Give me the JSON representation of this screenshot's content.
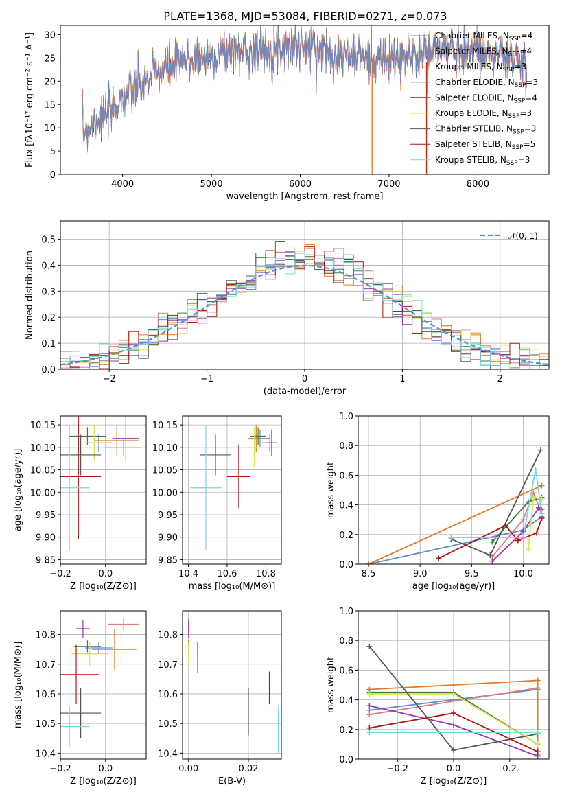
{
  "figure_title": "PLATE=1368, MJD=53084, FIBERID=0271, z=0.073",
  "colors": {
    "chabrier_miles": "#5b8bd6",
    "salpeter_miles": "#e07b7b",
    "kroupa_miles": "#e07b20",
    "chabrier_elodie": "#3a7a3a",
    "salpeter_elodie": "#9b35b0",
    "kroupa_elodie": "#d6e54a",
    "chabrier_stelib": "#555555",
    "salpeter_stelib": "#b01515",
    "kroupa_stelib": "#7ad9dc",
    "normal_curve": "#5b8bd6"
  },
  "chart_data": [
    {
      "id": "spectrum",
      "type": "line",
      "title": "PLATE=1368, MJD=53084, FIBERID=0271, z=0.073",
      "xlabel": "wavelength [Angstrom, rest frame]",
      "ylabel": "Flux [fλ10⁻¹⁷ erg cm⁻² s⁻¹ A⁻¹]",
      "xlim": [
        3300,
        8800
      ],
      "ylim": [
        0,
        32
      ],
      "xticks": [
        "4000",
        "5000",
        "6000",
        "7000",
        "8000"
      ],
      "yticks": [
        "0",
        "5",
        "10",
        "15",
        "20",
        "25",
        "30"
      ],
      "legend_placement": "right",
      "series": [
        {
          "name": "Chabrier MILES, N",
          "sub": "SSP",
          "suffix": "=4",
          "color": "#5b8bd6"
        },
        {
          "name": "Salpeter MILES, N",
          "sub": "SSP",
          "suffix": "=4",
          "color": "#e07b7b"
        },
        {
          "name": "Kroupa MILES, N",
          "sub": "SSP",
          "suffix": "=3",
          "color": "#e07b20"
        },
        {
          "name": "Chabrier ELODIE, N",
          "sub": "SSP",
          "suffix": "=3",
          "color": "#3a7a3a"
        },
        {
          "name": "Salpeter ELODIE, N",
          "sub": "SSP",
          "suffix": "=4",
          "color": "#9b35b0"
        },
        {
          "name": "Kroupa ELODIE, N",
          "sub": "SSP",
          "suffix": "=3",
          "color": "#d6e54a"
        },
        {
          "name": "Chabrier STELIB, N",
          "sub": "SSP",
          "suffix": "=3",
          "color": "#555555"
        },
        {
          "name": "Salpeter STELIB, N",
          "sub": "SSP",
          "suffix": "=5",
          "color": "#b01515"
        },
        {
          "name": "Kroupa STELIB, N",
          "sub": "SSP",
          "suffix": "=3",
          "color": "#7ad9dc"
        }
      ],
      "continuum": {
        "x": [
          3550,
          3700,
          3850,
          4000,
          4200,
          4400,
          4600,
          4800,
          5000,
          5200,
          5400,
          5600,
          5800,
          6000,
          6200,
          6400,
          6600,
          6800,
          7000,
          7200,
          7400,
          7600,
          7800,
          8000,
          8200,
          8400,
          8550
        ],
        "y": [
          9,
          12,
          13,
          16.5,
          19,
          22,
          23.5,
          24.5,
          25.5,
          26.5,
          26.5,
          27,
          27.5,
          27.5,
          27,
          26,
          25.5,
          25,
          24.5,
          25,
          26,
          27,
          27,
          26.5,
          26,
          25,
          23
        ]
      }
    },
    {
      "id": "residual-hist",
      "type": "histogram",
      "xlabel": "(data-model)/error",
      "ylabel": "Normed distribution",
      "xlim": [
        -2.5,
        2.5
      ],
      "ylim": [
        0,
        0.57
      ],
      "xticks": [
        "−2",
        "−1",
        "0",
        "1",
        "2"
      ],
      "yticks": [
        "0.0",
        "0.1",
        "0.2",
        "0.3",
        "0.4",
        "0.5"
      ],
      "legend": {
        "label": "𝒩(0, 1)",
        "placement": "top-right"
      },
      "bin_width": 0.1
    },
    {
      "id": "z-age",
      "type": "errorbar",
      "xlabel": "Z [log₁₀(Z/Z⊙)]",
      "ylabel": "age  [log₁₀(age/yr)]",
      "xlim": [
        -0.2,
        0.18
      ],
      "ylim": [
        9.84,
        10.17
      ],
      "xticks": [
        "−0.2",
        "0.0"
      ],
      "yticks": [
        "9.85",
        "9.90",
        "9.95",
        "10.00",
        "10.05",
        "10.10",
        "10.15"
      ],
      "points": [
        {
          "x": -0.03,
          "y": 10.11,
          "xerr": 0.06,
          "yerr": 0.02,
          "color": "#5b8bd6"
        },
        {
          "x": 0.08,
          "y": 10.1,
          "xerr": 0.08,
          "yerr": 0.02,
          "color": "#e07b7b"
        },
        {
          "x": 0.05,
          "y": 10.115,
          "xerr": 0.1,
          "yerr": 0.035,
          "color": "#e07b20"
        },
        {
          "x": -0.08,
          "y": 10.125,
          "xerr": 0.08,
          "yerr": 0.02,
          "color": "#3a7a3a"
        },
        {
          "x": 0.09,
          "y": 10.12,
          "xerr": 0.06,
          "yerr": 0.05,
          "color": "#9b35b0"
        },
        {
          "x": -0.05,
          "y": 10.11,
          "xerr": 0.08,
          "yerr": 0.04,
          "color": "#d6e54a"
        },
        {
          "x": -0.11,
          "y": 10.083,
          "xerr": 0.09,
          "yerr": 0.045,
          "color": "#555555"
        },
        {
          "x": -0.12,
          "y": 10.035,
          "xerr": 0.1,
          "yerr": 0.14,
          "color": "#b01515"
        },
        {
          "x": -0.16,
          "y": 10.01,
          "xerr": 0.09,
          "yerr": 0.14,
          "color": "#7ad9dc"
        }
      ]
    },
    {
      "id": "mass-age",
      "type": "errorbar",
      "xlabel": "mass [log₁₀(M/M⊙)]",
      "ylabel": "",
      "xlim": [
        10.37,
        10.88
      ],
      "ylim": [
        9.84,
        10.17
      ],
      "xticks": [
        "10.4",
        "10.6",
        "10.8"
      ],
      "yticks": [
        "9.85",
        "9.90",
        "9.95",
        "10.00",
        "10.05",
        "10.10",
        "10.15"
      ],
      "points": [
        {
          "x": 10.77,
          "y": 10.12,
          "xerr": 0.05,
          "yerr": 0.02,
          "color": "#5b8bd6"
        },
        {
          "x": 10.82,
          "y": 10.11,
          "xerr": 0.04,
          "yerr": 0.02,
          "color": "#e07b7b"
        },
        {
          "x": 10.75,
          "y": 10.12,
          "xerr": 0.04,
          "yerr": 0.03,
          "color": "#e07b20"
        },
        {
          "x": 10.76,
          "y": 10.125,
          "xerr": 0.04,
          "yerr": 0.02,
          "color": "#3a7a3a"
        },
        {
          "x": 10.83,
          "y": 10.11,
          "xerr": 0.03,
          "yerr": 0.03,
          "color": "#9b35b0"
        },
        {
          "x": 10.74,
          "y": 10.1,
          "xerr": 0.03,
          "yerr": 0.045,
          "color": "#d6e54a"
        },
        {
          "x": 10.54,
          "y": 10.083,
          "xerr": 0.08,
          "yerr": 0.045,
          "color": "#555555"
        },
        {
          "x": 10.66,
          "y": 10.035,
          "xerr": 0.06,
          "yerr": 0.07,
          "color": "#b01515"
        },
        {
          "x": 10.49,
          "y": 10.01,
          "xerr": 0.08,
          "yerr": 0.14,
          "color": "#7ad9dc"
        }
      ]
    },
    {
      "id": "age-massweight",
      "type": "line",
      "xlabel": "age  [log₁₀(age/yr)]",
      "ylabel": "mass weight",
      "xlim": [
        8.4,
        10.25
      ],
      "ylim": [
        0,
        1
      ],
      "xticks": [
        "8.5",
        "9.0",
        "9.5",
        "10.0"
      ],
      "yticks": [
        "0.0",
        "0.2",
        "0.4",
        "0.6",
        "0.8",
        "1.0"
      ],
      "series": [
        {
          "color": "#5b8bd6",
          "x": [
            8.5,
            10.0,
            10.18
          ],
          "y": [
            0.0,
            0.23,
            0.32
          ]
        },
        {
          "color": "#e07b7b",
          "x": [
            9.7,
            10.0,
            10.1,
            10.17
          ],
          "y": [
            0.05,
            0.3,
            0.48,
            0.36
          ]
        },
        {
          "color": "#e07b20",
          "x": [
            8.5,
            10.18
          ],
          "y": [
            0.0,
            0.53
          ]
        },
        {
          "color": "#3a7a3a",
          "x": [
            9.7,
            10.05,
            10.18
          ],
          "y": [
            0.15,
            0.42,
            0.45
          ]
        },
        {
          "color": "#9b35b0",
          "x": [
            9.7,
            10.0,
            10.15,
            10.18
          ],
          "y": [
            0.02,
            0.22,
            0.38,
            0.37
          ]
        },
        {
          "color": "#d6e54a",
          "x": [
            10.05,
            10.1,
            10.18
          ],
          "y": [
            0.1,
            0.45,
            0.44
          ]
        },
        {
          "color": "#555555",
          "x": [
            9.3,
            9.68,
            10.17
          ],
          "y": [
            0.17,
            0.06,
            0.77
          ]
        },
        {
          "color": "#b01515",
          "x": [
            9.18,
            9.83,
            9.95,
            10.13,
            10.18
          ],
          "y": [
            0.04,
            0.26,
            0.16,
            0.21,
            0.31
          ]
        },
        {
          "color": "#7ad9dc",
          "x": [
            9.3,
            10.0,
            10.12,
            10.18
          ],
          "y": [
            0.18,
            0.18,
            0.64,
            0.34
          ]
        }
      ]
    },
    {
      "id": "z-mass",
      "type": "errorbar",
      "xlabel": "Z [log₁₀(Z/Z⊙)]",
      "ylabel": "mass [log₁₀(M/M⊙)]",
      "xlim": [
        -0.2,
        0.18
      ],
      "ylim": [
        10.38,
        10.88
      ],
      "xticks": [
        "−0.2",
        "0.0"
      ],
      "yticks": [
        "10.4",
        "10.5",
        "10.6",
        "10.7",
        "10.8"
      ],
      "points": [
        {
          "x": -0.03,
          "y": 10.755,
          "xerr": 0.06,
          "yerr": 0.02,
          "color": "#5b8bd6"
        },
        {
          "x": 0.08,
          "y": 10.835,
          "xerr": 0.07,
          "yerr": 0.02,
          "color": "#e07b7b"
        },
        {
          "x": 0.04,
          "y": 10.75,
          "xerr": 0.1,
          "yerr": 0.07,
          "color": "#e07b20"
        },
        {
          "x": -0.08,
          "y": 10.76,
          "xerr": 0.06,
          "yerr": 0.02,
          "color": "#3a7a3a"
        },
        {
          "x": -0.1,
          "y": 10.82,
          "xerr": 0.03,
          "yerr": 0.03,
          "color": "#9b35b0"
        },
        {
          "x": -0.07,
          "y": 10.735,
          "xerr": 0.08,
          "yerr": 0.04,
          "color": "#d6e54a"
        },
        {
          "x": -0.11,
          "y": 10.535,
          "xerr": 0.09,
          "yerr": 0.085,
          "color": "#555555"
        },
        {
          "x": -0.13,
          "y": 10.665,
          "xerr": 0.1,
          "yerr": 0.1,
          "color": "#b01515"
        },
        {
          "x": -0.16,
          "y": 10.49,
          "xerr": 0.09,
          "yerr": 0.07,
          "color": "#7ad9dc"
        }
      ]
    },
    {
      "id": "ebv-mass",
      "type": "errorbar",
      "xlabel": "E(B-V)",
      "ylabel": "",
      "xlim": [
        -0.002,
        0.031
      ],
      "ylim": [
        10.38,
        10.88
      ],
      "xticks": [
        "0.00",
        "0.02"
      ],
      "yticks": [
        "10.4",
        "10.5",
        "10.6",
        "10.7",
        "10.8"
      ],
      "points": [
        {
          "x": 0.003,
          "y": 10.755,
          "xerr": 0.0,
          "yerr": 0.02,
          "color": "#5b8bd6"
        },
        {
          "x": 0.0,
          "y": 10.835,
          "xerr": 0.0,
          "yerr": 0.02,
          "color": "#e07b7b"
        },
        {
          "x": 0.003,
          "y": 10.72,
          "xerr": 0.0,
          "yerr": 0.05,
          "color": "#e07b20"
        },
        {
          "x": 0.0,
          "y": 10.76,
          "xerr": 0.0,
          "yerr": 0.02,
          "color": "#3a7a3a"
        },
        {
          "x": 0.0,
          "y": 10.82,
          "xerr": 0.0,
          "yerr": 0.03,
          "color": "#9b35b0"
        },
        {
          "x": 0.0,
          "y": 10.735,
          "xerr": 0.0,
          "yerr": 0.04,
          "color": "#d6e54a"
        },
        {
          "x": 0.02,
          "y": 10.54,
          "xerr": 0.0,
          "yerr": 0.08,
          "color": "#555555"
        },
        {
          "x": 0.027,
          "y": 10.62,
          "xerr": 0.0,
          "yerr": 0.055,
          "color": "#b01515"
        },
        {
          "x": 0.03,
          "y": 10.48,
          "xerr": 0.0,
          "yerr": 0.08,
          "color": "#7ad9dc"
        }
      ]
    },
    {
      "id": "z-massweight",
      "type": "line",
      "xlabel": "Z [log₁₀(Z/Z⊙)]",
      "ylabel": "mass weight",
      "xlim": [
        -0.34,
        0.34
      ],
      "ylim": [
        0,
        1
      ],
      "xticks": [
        "−0.2",
        "0.0",
        "0.2"
      ],
      "yticks": [
        "0.0",
        "0.2",
        "0.4",
        "0.6",
        "0.8",
        "1.0"
      ],
      "series": [
        {
          "color": "#5b8bd6",
          "x": [
            -0.3,
            0.3
          ],
          "y": [
            0.33,
            0.47
          ]
        },
        {
          "color": "#e07b7b",
          "x": [
            -0.3,
            0.3,
            0.3
          ],
          "y": [
            0.3,
            0.48,
            0.03
          ]
        },
        {
          "color": "#e07b20",
          "x": [
            -0.3,
            0.3,
            0.3
          ],
          "y": [
            0.47,
            0.53,
            0.02
          ]
        },
        {
          "color": "#3a7a3a",
          "x": [
            -0.3,
            0.0,
            0.3
          ],
          "y": [
            0.45,
            0.45,
            0.1
          ]
        },
        {
          "color": "#9b35b0",
          "x": [
            -0.3,
            0.0,
            0.3
          ],
          "y": [
            0.36,
            0.23,
            0.02
          ]
        },
        {
          "color": "#d6e54a",
          "x": [
            -0.3,
            0.0,
            0.3
          ],
          "y": [
            0.44,
            0.44,
            0.1
          ]
        },
        {
          "color": "#555555",
          "x": [
            -0.3,
            0.0,
            0.3
          ],
          "y": [
            0.76,
            0.06,
            0.17
          ]
        },
        {
          "color": "#b01515",
          "x": [
            -0.3,
            0.0,
            0.3,
            0.3
          ],
          "y": [
            0.21,
            0.31,
            0.05,
            0.05
          ]
        },
        {
          "color": "#7ad9dc",
          "x": [
            -0.3,
            0.3
          ],
          "y": [
            0.18,
            0.18
          ]
        }
      ]
    }
  ]
}
